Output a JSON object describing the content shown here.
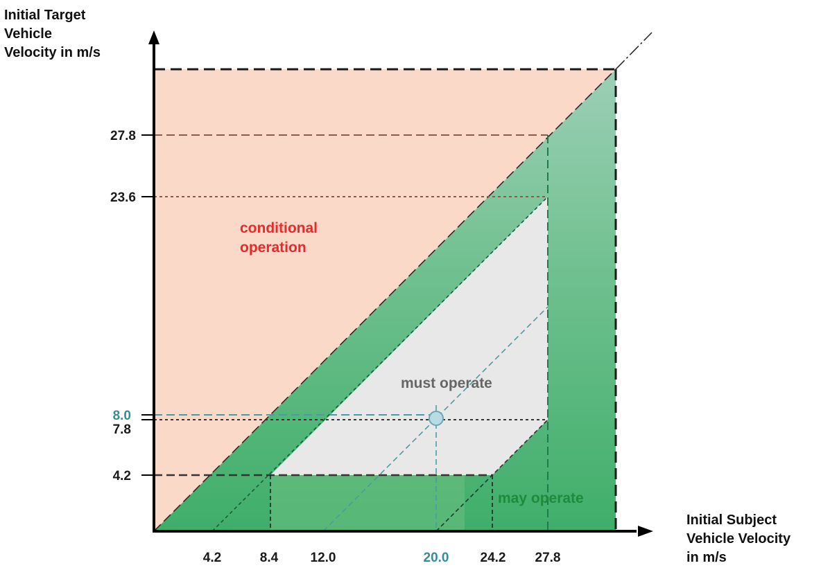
{
  "y_axis_title": [
    "Initial Target",
    "Vehicle",
    "Velocity in m/s"
  ],
  "x_axis_title": [
    "Initial Subject",
    "Vehicle Velocity",
    "in m/s"
  ],
  "y_ticks": [
    {
      "label": "27.8"
    },
    {
      "label": "23.6"
    },
    {
      "label": "8.0"
    },
    {
      "label": "7.8"
    },
    {
      "label": "4.2"
    }
  ],
  "x_ticks": [
    {
      "label": "4.2"
    },
    {
      "label": "8.4"
    },
    {
      "label": "12.0"
    },
    {
      "label": "20.0"
    },
    {
      "label": "24.2"
    },
    {
      "label": "27.8"
    }
  ],
  "regions": {
    "conditional": [
      "conditional",
      "operation"
    ],
    "must": "must operate",
    "may": "may operate"
  },
  "colors": {
    "conditional_fill": "#fbd9c9",
    "must_fill": "#e8e8e8",
    "may_fill": "#5ab67a",
    "conditional_text": "#e52b2b",
    "must_text": "#666666",
    "may_text": "#1e8a3c",
    "highlight": "#3a8a98"
  }
}
